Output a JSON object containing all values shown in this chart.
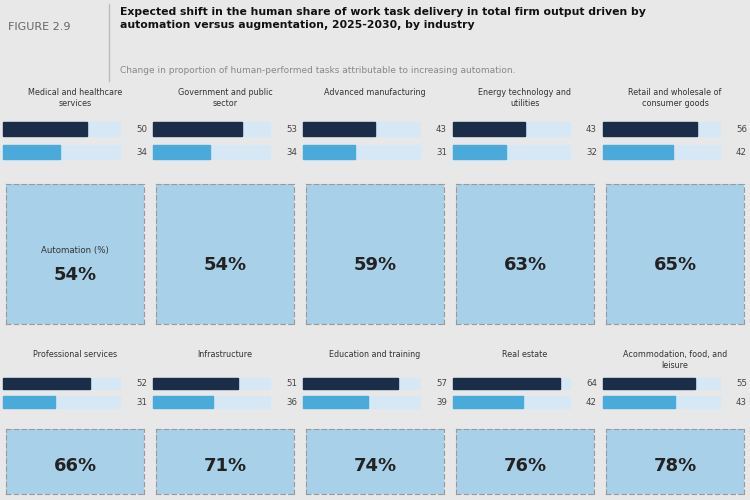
{
  "figure_label": "FIGURE 2.9",
  "title": "Expected shift in the human share of work task delivery in total firm output driven by\nautomation versus augmentation, 2025-2030, by industry",
  "subtitle": "Change in proportion of human-performed tasks attributable to increasing automation.",
  "row1_industries": [
    {
      "name": "Medical and healthcare\nservices",
      "dark_val": 50,
      "light_val": 34,
      "pct": "54%"
    },
    {
      "name": "Government and public\nsector",
      "dark_val": 53,
      "light_val": 34,
      "pct": "54%"
    },
    {
      "name": "Advanced manufacturing",
      "dark_val": 43,
      "light_val": 31,
      "pct": "59%"
    },
    {
      "name": "Energy technology and\nutilities",
      "dark_val": 43,
      "light_val": 32,
      "pct": "63%"
    },
    {
      "name": "Retail and wholesale of\nconsumer goods",
      "dark_val": 56,
      "light_val": 42,
      "pct": "65%"
    }
  ],
  "row2_industries": [
    {
      "name": "Professional services",
      "dark_val": 52,
      "light_val": 31,
      "pct": "66%"
    },
    {
      "name": "Infrastructure",
      "dark_val": 51,
      "light_val": 36,
      "pct": "71%"
    },
    {
      "name": "Education and training",
      "dark_val": 57,
      "light_val": 39,
      "pct": "74%"
    },
    {
      "name": "Real estate",
      "dark_val": 64,
      "light_val": 42,
      "pct": "76%"
    },
    {
      "name": "Acommodation, food, and\nleisure",
      "dark_val": 55,
      "light_val": 43,
      "pct": "78%"
    }
  ],
  "automation_label": "Automation (%)",
  "dark_bar_color": "#1a2e4a",
  "light_bar_color": "#4aabdb",
  "bar_bg_color": "#d6e8f5",
  "box_fill_color": "#a8d0e8",
  "box_border_color": "#999999",
  "header_bg": "#ffffff",
  "content_bg": "#e8e8e8",
  "bar_section_bg": "#ffffff",
  "bar_max": 70,
  "fig_label_color": "#666666",
  "title_color": "#111111",
  "subtitle_color": "#888888",
  "value_color": "#444444",
  "pct_color": "#222222",
  "industry_name_color": "#333333"
}
